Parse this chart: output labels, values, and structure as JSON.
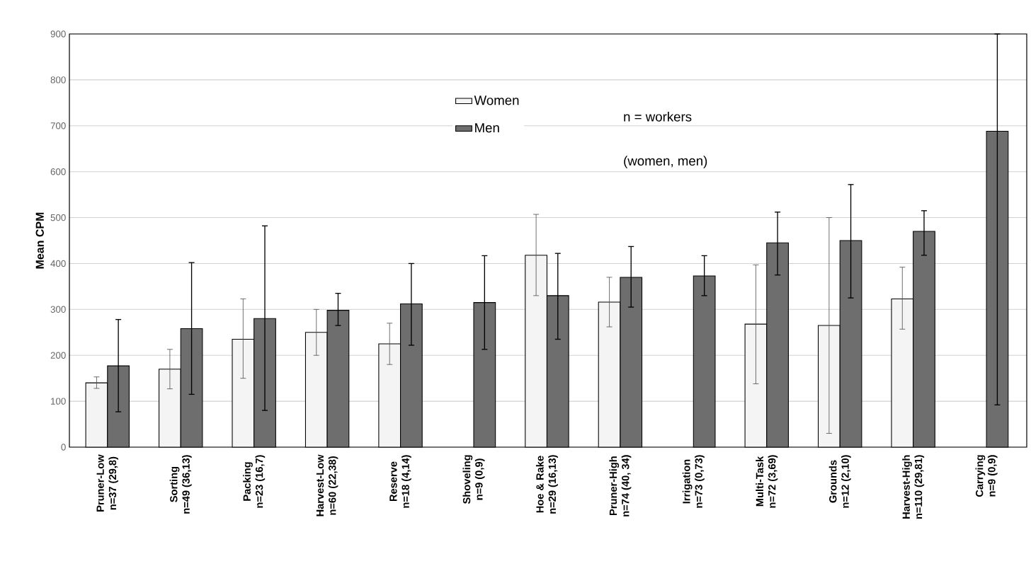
{
  "chart_data": {
    "type": "bar",
    "ylabel": "Mean CPM",
    "categories": [
      "Pruner-Low\nn=37 (29,8)",
      "Sorting\nn=49 (36,13)",
      "Packing\nn=23 (16,7)",
      "Harvest-Low\nn=60 (22,38)",
      "Reserve\nn=18 (4,14)",
      "Shoveling\nn=9 (0,9)",
      "Hoe & Rake\nn=29 (16,13)",
      "Pruner-High\nn=74 (40, 34)",
      "Irrigation\nn=73 (0,73)",
      "Multi-Task\nn=72 (3,69)",
      "Grounds\nn=12 (2,10)",
      "Harvest-High\nn=110 (29,81)",
      "Carrying\nn=9 (0,9)"
    ],
    "series": [
      {
        "name": "Women",
        "color": "#f4f4f4",
        "values": [
          140,
          170,
          235,
          250,
          225,
          null,
          418,
          316,
          null,
          268,
          265,
          323,
          null
        ],
        "errors": [
          [
            128,
            153
          ],
          [
            127,
            213
          ],
          [
            150,
            323
          ],
          [
            200,
            300
          ],
          [
            180,
            270
          ],
          null,
          [
            330,
            507
          ],
          [
            262,
            370
          ],
          null,
          [
            138,
            397
          ],
          [
            30,
            500
          ],
          [
            257,
            392
          ],
          null
        ]
      },
      {
        "name": "Men",
        "color": "#6e6e6e",
        "values": [
          177,
          258,
          280,
          298,
          312,
          315,
          330,
          370,
          373,
          445,
          450,
          470,
          688
        ],
        "errors": [
          [
            77,
            278
          ],
          [
            115,
            402
          ],
          [
            80,
            482
          ],
          [
            265,
            335
          ],
          [
            222,
            400
          ],
          [
            213,
            417
          ],
          [
            235,
            422
          ],
          [
            305,
            437
          ],
          [
            330,
            417
          ],
          [
            375,
            512
          ],
          [
            325,
            572
          ],
          [
            418,
            515
          ],
          [
            92,
            900
          ]
        ]
      }
    ],
    "ylim": [
      0,
      900
    ],
    "yticks": [
      0,
      100,
      200,
      300,
      400,
      500,
      600,
      700,
      800,
      900
    ],
    "grid": "y",
    "legend": "top",
    "annotations": [
      "n = workers",
      "(women, men)"
    ]
  }
}
